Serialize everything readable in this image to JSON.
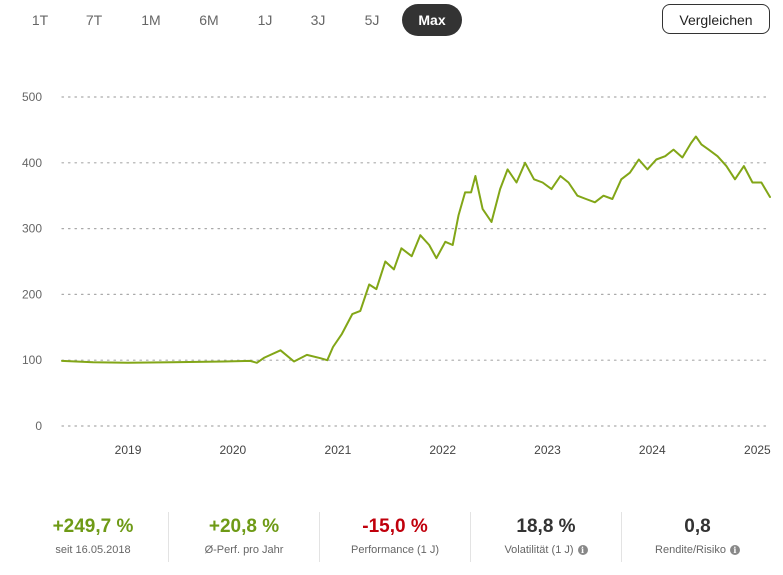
{
  "range_tabs": {
    "items": [
      "1T",
      "7T",
      "1M",
      "6M",
      "1J",
      "3J",
      "5J",
      "Max"
    ],
    "active": "Max"
  },
  "compare_button": {
    "label": "Vergleichen"
  },
  "colors": {
    "line": "#82a617",
    "positive": "#6e9a16",
    "negative": "#c0000c",
    "neutral": "#333333"
  },
  "chart_data": {
    "type": "line",
    "title": "",
    "xlabel": "",
    "ylabel": "",
    "ylim": [
      0,
      500
    ],
    "yticks": [
      "0",
      "100",
      "200",
      "300",
      "400",
      "500"
    ],
    "xticks": [
      "2019",
      "2020",
      "2021",
      "2022",
      "2023",
      "2024",
      "2025"
    ],
    "xlim": [
      "2018-05-16",
      "2025-02-14"
    ],
    "grid": true,
    "series": [
      {
        "x": [
          "2018-05-16",
          "2018-09-01",
          "2019-01-01",
          "2019-06-01",
          "2019-12-01",
          "2020-03-01",
          "2020-03-25",
          "2020-04-20",
          "2020-06-15",
          "2020-08-01",
          "2020-09-15",
          "2020-11-01",
          "2020-11-25",
          "2020-12-15",
          "2021-01-15",
          "2021-02-20",
          "2021-03-20",
          "2021-04-20",
          "2021-05-15",
          "2021-06-15",
          "2021-07-15",
          "2021-08-10",
          "2021-09-15",
          "2021-10-15",
          "2021-11-15",
          "2021-12-10",
          "2022-01-10",
          "2022-02-05",
          "2022-02-25",
          "2022-03-20",
          "2022-04-10",
          "2022-04-25",
          "2022-05-20",
          "2022-06-20",
          "2022-07-20",
          "2022-08-15",
          "2022-09-15",
          "2022-10-15",
          "2022-11-15",
          "2022-12-15",
          "2023-01-15",
          "2023-02-15",
          "2023-03-15",
          "2023-04-15",
          "2023-05-15",
          "2023-06-15",
          "2023-07-15",
          "2023-08-15",
          "2023-09-15",
          "2023-10-15",
          "2023-11-15",
          "2023-12-15",
          "2024-01-15",
          "2024-02-15",
          "2024-03-15",
          "2024-04-15",
          "2024-05-15",
          "2024-06-01",
          "2024-06-20",
          "2024-07-15",
          "2024-08-15",
          "2024-09-15",
          "2024-10-15",
          "2024-11-15",
          "2024-12-15",
          "2025-01-15",
          "2025-02-14"
        ],
        "values": [
          99,
          97,
          96,
          97,
          98,
          99,
          96,
          104,
          115,
          98,
          108,
          103,
          100,
          120,
          140,
          170,
          175,
          215,
          208,
          250,
          238,
          270,
          258,
          290,
          275,
          255,
          280,
          275,
          320,
          355,
          355,
          380,
          330,
          310,
          360,
          390,
          370,
          400,
          375,
          370,
          360,
          380,
          370,
          350,
          345,
          340,
          350,
          345,
          375,
          385,
          405,
          390,
          405,
          410,
          420,
          408,
          430,
          440,
          428,
          420,
          410,
          395,
          375,
          395,
          370,
          370,
          348
        ]
      }
    ]
  },
  "stats": [
    {
      "value": "+249,7 %",
      "label": "seit 16.05.2018",
      "tone": "positive",
      "info": ""
    },
    {
      "value": "+20,8 %",
      "label": "Ø-Perf. pro Jahr",
      "tone": "positive",
      "info": ""
    },
    {
      "value": "-15,0 %",
      "label": "Performance (1 J)",
      "tone": "negative",
      "info": ""
    },
    {
      "value": "18,8 %",
      "label": "Volatilität (1 J)",
      "tone": "neutral",
      "info": "i"
    },
    {
      "value": "0,8",
      "label": "Rendite/Risiko",
      "tone": "neutral",
      "info": "i"
    }
  ]
}
